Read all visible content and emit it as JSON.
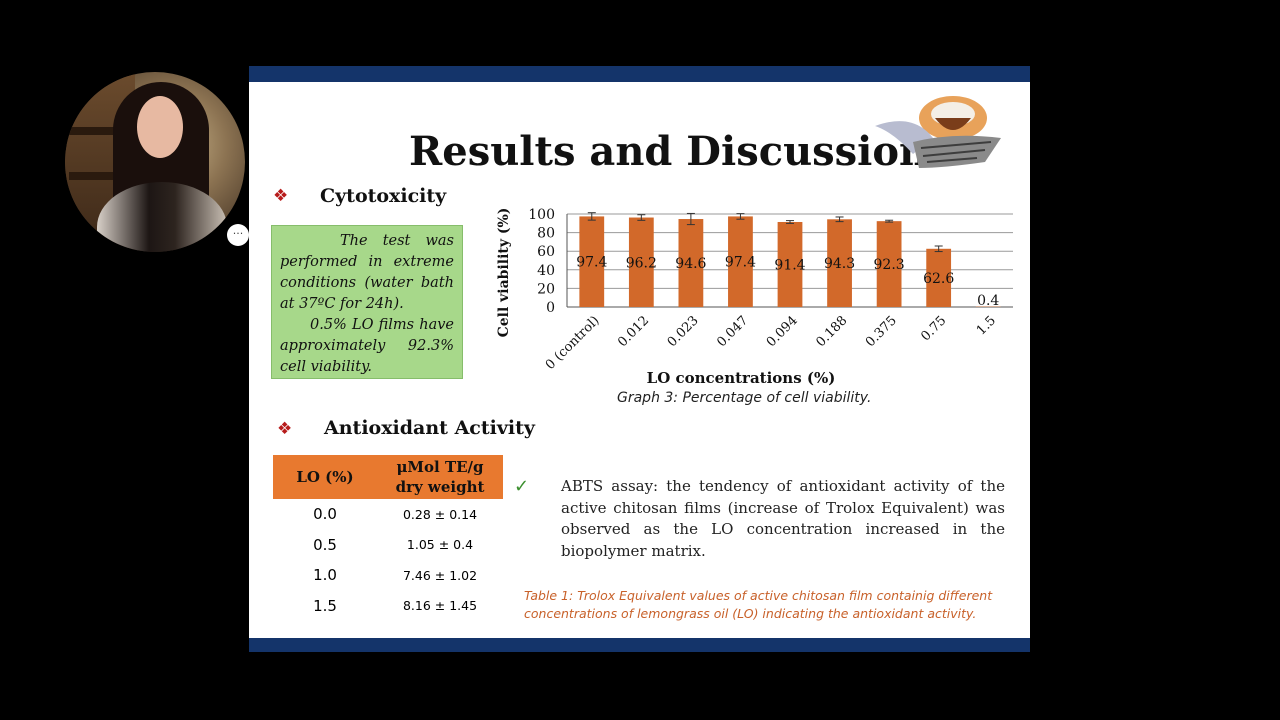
{
  "webcam": {
    "more_button_label": "···"
  },
  "slide": {
    "title": "Results and Discussion",
    "bullet_glyph": "❖",
    "cytotoxicity": {
      "heading": "Cytotoxicity",
      "paragraph1": "The test was performed in extreme conditions (water bath at 37ºC for 24h).",
      "paragraph2": "0.5% LO films have approximately 92.3% cell viability."
    },
    "graph_caption": "Graph 3: Percentage of cell viability.",
    "antioxidant": {
      "heading": "Antioxidant Activity",
      "table_headers": [
        "LO (%)",
        "μMol TE/g dry weight"
      ],
      "table_rows": [
        [
          "0.0",
          "0.28 ± 0.14"
        ],
        [
          "0.5",
          "1.05 ± 0.4"
        ],
        [
          "1.0",
          "7.46 ± 1.02"
        ],
        [
          "1.5",
          "8.16 ± 1.45"
        ]
      ],
      "check_glyph": "✓",
      "abts_text": "ABTS assay: the tendency of antioxidant activity of the active chitosan films (increase of Trolox Equivalent) was observed as the LO concentration increased in the biopolymer matrix.",
      "table_caption": "Table 1: Trolox Equivalent values of active chitosan film containig different concentrations of lemongrass oil (LO) indicating the antioxidant activity."
    },
    "colors": {
      "header_bar": "#14346a",
      "bar_fill": "#d2692a",
      "green_box": "#a7d88a",
      "table_header": "#e8792f",
      "bullet": "#b71c1c"
    }
  },
  "chart_data": {
    "type": "bar",
    "categories": [
      "0 (control)",
      "0.012",
      "0.023",
      "0.047",
      "0.094",
      "0.188",
      "0.375",
      "0.75",
      "1.5"
    ],
    "values": [
      97.4,
      96.2,
      94.6,
      97.4,
      91.4,
      94.3,
      92.3,
      62.6,
      0.4
    ],
    "data_labels": [
      "97.4",
      "96.2",
      "94.6",
      "97.4",
      "91.4",
      "94.3",
      "92.3",
      "62.6",
      "0.4"
    ],
    "errors": [
      8,
      6,
      12,
      6,
      3,
      5,
      2,
      6,
      0
    ],
    "xlabel": "LO concentrations (%)",
    "ylabel": "Cell viability (%)",
    "ylim": [
      0,
      100
    ],
    "yticks": [
      0,
      20,
      40,
      60,
      80,
      100
    ],
    "grid": true
  }
}
